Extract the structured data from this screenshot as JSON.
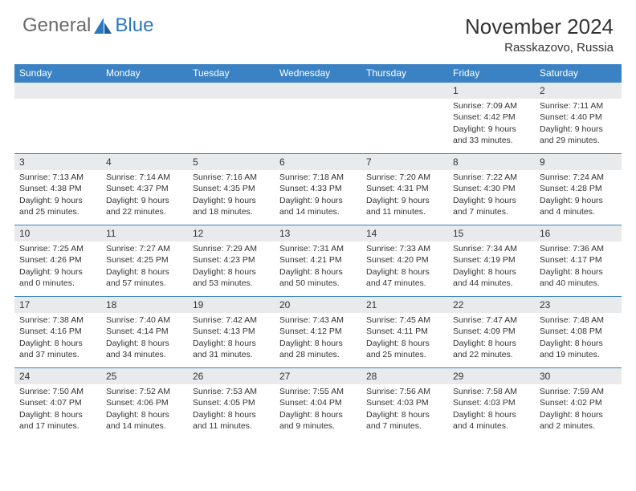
{
  "brand": {
    "general": "General",
    "blue": "Blue",
    "logo_color": "#2b78c2",
    "text_gray": "#6a6a6a"
  },
  "header": {
    "month_title": "November 2024",
    "location": "Rasskazovo, Russia"
  },
  "style": {
    "header_bg": "#3b82c4",
    "border_color": "#3b82c4",
    "daybar_bg": "#e8eaec",
    "text_color": "#333333",
    "bg": "#ffffff",
    "weekday_fontsize": 12,
    "daynum_fontsize": 12,
    "body_fontsize": 10.5
  },
  "weekdays": [
    "Sunday",
    "Monday",
    "Tuesday",
    "Wednesday",
    "Thursday",
    "Friday",
    "Saturday"
  ],
  "weeks": [
    [
      {
        "n": "",
        "sr": "",
        "ss": "",
        "dl": ""
      },
      {
        "n": "",
        "sr": "",
        "ss": "",
        "dl": ""
      },
      {
        "n": "",
        "sr": "",
        "ss": "",
        "dl": ""
      },
      {
        "n": "",
        "sr": "",
        "ss": "",
        "dl": ""
      },
      {
        "n": "",
        "sr": "",
        "ss": "",
        "dl": ""
      },
      {
        "n": "1",
        "sr": "Sunrise: 7:09 AM",
        "ss": "Sunset: 4:42 PM",
        "dl": "Daylight: 9 hours and 33 minutes."
      },
      {
        "n": "2",
        "sr": "Sunrise: 7:11 AM",
        "ss": "Sunset: 4:40 PM",
        "dl": "Daylight: 9 hours and 29 minutes."
      }
    ],
    [
      {
        "n": "3",
        "sr": "Sunrise: 7:13 AM",
        "ss": "Sunset: 4:38 PM",
        "dl": "Daylight: 9 hours and 25 minutes."
      },
      {
        "n": "4",
        "sr": "Sunrise: 7:14 AM",
        "ss": "Sunset: 4:37 PM",
        "dl": "Daylight: 9 hours and 22 minutes."
      },
      {
        "n": "5",
        "sr": "Sunrise: 7:16 AM",
        "ss": "Sunset: 4:35 PM",
        "dl": "Daylight: 9 hours and 18 minutes."
      },
      {
        "n": "6",
        "sr": "Sunrise: 7:18 AM",
        "ss": "Sunset: 4:33 PM",
        "dl": "Daylight: 9 hours and 14 minutes."
      },
      {
        "n": "7",
        "sr": "Sunrise: 7:20 AM",
        "ss": "Sunset: 4:31 PM",
        "dl": "Daylight: 9 hours and 11 minutes."
      },
      {
        "n": "8",
        "sr": "Sunrise: 7:22 AM",
        "ss": "Sunset: 4:30 PM",
        "dl": "Daylight: 9 hours and 7 minutes."
      },
      {
        "n": "9",
        "sr": "Sunrise: 7:24 AM",
        "ss": "Sunset: 4:28 PM",
        "dl": "Daylight: 9 hours and 4 minutes."
      }
    ],
    [
      {
        "n": "10",
        "sr": "Sunrise: 7:25 AM",
        "ss": "Sunset: 4:26 PM",
        "dl": "Daylight: 9 hours and 0 minutes."
      },
      {
        "n": "11",
        "sr": "Sunrise: 7:27 AM",
        "ss": "Sunset: 4:25 PM",
        "dl": "Daylight: 8 hours and 57 minutes."
      },
      {
        "n": "12",
        "sr": "Sunrise: 7:29 AM",
        "ss": "Sunset: 4:23 PM",
        "dl": "Daylight: 8 hours and 53 minutes."
      },
      {
        "n": "13",
        "sr": "Sunrise: 7:31 AM",
        "ss": "Sunset: 4:21 PM",
        "dl": "Daylight: 8 hours and 50 minutes."
      },
      {
        "n": "14",
        "sr": "Sunrise: 7:33 AM",
        "ss": "Sunset: 4:20 PM",
        "dl": "Daylight: 8 hours and 47 minutes."
      },
      {
        "n": "15",
        "sr": "Sunrise: 7:34 AM",
        "ss": "Sunset: 4:19 PM",
        "dl": "Daylight: 8 hours and 44 minutes."
      },
      {
        "n": "16",
        "sr": "Sunrise: 7:36 AM",
        "ss": "Sunset: 4:17 PM",
        "dl": "Daylight: 8 hours and 40 minutes."
      }
    ],
    [
      {
        "n": "17",
        "sr": "Sunrise: 7:38 AM",
        "ss": "Sunset: 4:16 PM",
        "dl": "Daylight: 8 hours and 37 minutes."
      },
      {
        "n": "18",
        "sr": "Sunrise: 7:40 AM",
        "ss": "Sunset: 4:14 PM",
        "dl": "Daylight: 8 hours and 34 minutes."
      },
      {
        "n": "19",
        "sr": "Sunrise: 7:42 AM",
        "ss": "Sunset: 4:13 PM",
        "dl": "Daylight: 8 hours and 31 minutes."
      },
      {
        "n": "20",
        "sr": "Sunrise: 7:43 AM",
        "ss": "Sunset: 4:12 PM",
        "dl": "Daylight: 8 hours and 28 minutes."
      },
      {
        "n": "21",
        "sr": "Sunrise: 7:45 AM",
        "ss": "Sunset: 4:11 PM",
        "dl": "Daylight: 8 hours and 25 minutes."
      },
      {
        "n": "22",
        "sr": "Sunrise: 7:47 AM",
        "ss": "Sunset: 4:09 PM",
        "dl": "Daylight: 8 hours and 22 minutes."
      },
      {
        "n": "23",
        "sr": "Sunrise: 7:48 AM",
        "ss": "Sunset: 4:08 PM",
        "dl": "Daylight: 8 hours and 19 minutes."
      }
    ],
    [
      {
        "n": "24",
        "sr": "Sunrise: 7:50 AM",
        "ss": "Sunset: 4:07 PM",
        "dl": "Daylight: 8 hours and 17 minutes."
      },
      {
        "n": "25",
        "sr": "Sunrise: 7:52 AM",
        "ss": "Sunset: 4:06 PM",
        "dl": "Daylight: 8 hours and 14 minutes."
      },
      {
        "n": "26",
        "sr": "Sunrise: 7:53 AM",
        "ss": "Sunset: 4:05 PM",
        "dl": "Daylight: 8 hours and 11 minutes."
      },
      {
        "n": "27",
        "sr": "Sunrise: 7:55 AM",
        "ss": "Sunset: 4:04 PM",
        "dl": "Daylight: 8 hours and 9 minutes."
      },
      {
        "n": "28",
        "sr": "Sunrise: 7:56 AM",
        "ss": "Sunset: 4:03 PM",
        "dl": "Daylight: 8 hours and 7 minutes."
      },
      {
        "n": "29",
        "sr": "Sunrise: 7:58 AM",
        "ss": "Sunset: 4:03 PM",
        "dl": "Daylight: 8 hours and 4 minutes."
      },
      {
        "n": "30",
        "sr": "Sunrise: 7:59 AM",
        "ss": "Sunset: 4:02 PM",
        "dl": "Daylight: 8 hours and 2 minutes."
      }
    ]
  ]
}
